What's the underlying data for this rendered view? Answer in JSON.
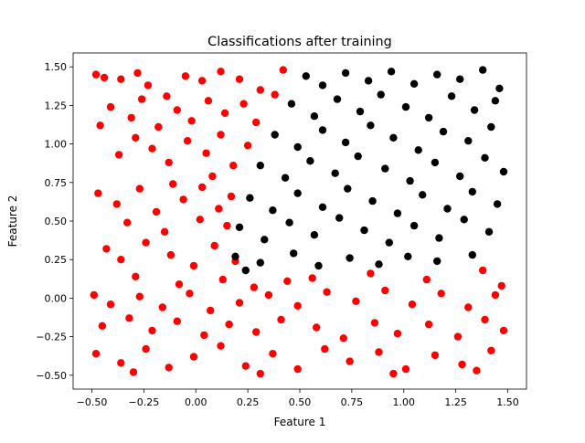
{
  "chart_data": {
    "type": "scatter",
    "title": "Classifications after training",
    "xlabel": "Feature 1",
    "ylabel": "Feature 2",
    "xlim": [
      -0.59,
      1.59
    ],
    "ylim": [
      -0.59,
      1.59
    ],
    "xticks": [
      -0.5,
      -0.25,
      0.0,
      0.25,
      0.5,
      0.75,
      1.0,
      1.25,
      1.5
    ],
    "xtick_labels": [
      "−0.50",
      "−0.25",
      "0.00",
      "0.25",
      "0.50",
      "0.75",
      "1.00",
      "1.25",
      "1.50"
    ],
    "yticks": [
      -0.5,
      -0.25,
      0.0,
      0.25,
      0.5,
      0.75,
      1.0,
      1.25,
      1.5
    ],
    "ytick_labels": [
      "−0.50",
      "−0.25",
      "0.00",
      "0.25",
      "0.50",
      "0.75",
      "1.00",
      "1.25",
      "1.50"
    ],
    "grid": false,
    "legend": "none",
    "series": [
      {
        "color": "#ff0000",
        "points": [
          [
            -0.48,
            1.45
          ],
          [
            -0.44,
            1.43
          ],
          [
            -0.36,
            1.42
          ],
          [
            -0.28,
            1.46
          ],
          [
            -0.23,
            1.38
          ],
          [
            -0.14,
            1.31
          ],
          [
            -0.05,
            1.44
          ],
          [
            0.03,
            1.41
          ],
          [
            0.12,
            1.47
          ],
          [
            0.21,
            1.42
          ],
          [
            0.31,
            1.35
          ],
          [
            0.42,
            1.48
          ],
          [
            -0.46,
            1.12
          ],
          [
            -0.41,
            1.24
          ],
          [
            -0.31,
            1.17
          ],
          [
            -0.26,
            1.29
          ],
          [
            -0.18,
            1.11
          ],
          [
            -0.09,
            1.22
          ],
          [
            -0.02,
            1.15
          ],
          [
            0.06,
            1.28
          ],
          [
            0.14,
            1.2
          ],
          [
            0.23,
            1.26
          ],
          [
            0.29,
            1.14
          ],
          [
            0.38,
            1.32
          ],
          [
            -0.37,
            0.93
          ],
          [
            -0.29,
            1.04
          ],
          [
            -0.21,
            0.97
          ],
          [
            -0.13,
            0.88
          ],
          [
            -0.04,
            1.02
          ],
          [
            0.05,
            0.94
          ],
          [
            0.12,
            1.06
          ],
          [
            0.18,
            0.86
          ],
          [
            0.25,
            0.99
          ],
          [
            0.08,
            0.79
          ],
          [
            -0.11,
            0.74
          ],
          [
            -0.47,
            0.68
          ],
          [
            -0.38,
            0.61
          ],
          [
            -0.27,
            0.71
          ],
          [
            -0.19,
            0.56
          ],
          [
            -0.06,
            0.64
          ],
          [
            0.03,
            0.72
          ],
          [
            0.11,
            0.58
          ],
          [
            0.17,
            0.66
          ],
          [
            -0.33,
            0.49
          ],
          [
            -0.15,
            0.43
          ],
          [
            0.02,
            0.51
          ],
          [
            0.15,
            0.47
          ],
          [
            -0.43,
            0.32
          ],
          [
            -0.36,
            0.25
          ],
          [
            -0.24,
            0.36
          ],
          [
            -0.12,
            0.28
          ],
          [
            -0.01,
            0.21
          ],
          [
            0.09,
            0.34
          ],
          [
            0.19,
            0.24
          ],
          [
            -0.29,
            0.14
          ],
          [
            -0.08,
            0.09
          ],
          [
            0.13,
            0.12
          ],
          [
            0.28,
            0.07
          ],
          [
            0.44,
            0.11
          ],
          [
            -0.49,
            0.02
          ],
          [
            -0.41,
            -0.04
          ],
          [
            -0.27,
            0.01
          ],
          [
            -0.16,
            -0.06
          ],
          [
            -0.03,
            0.03
          ],
          [
            0.07,
            -0.08
          ],
          [
            0.21,
            -0.03
          ],
          [
            0.35,
            0.02
          ],
          [
            0.49,
            -0.05
          ],
          [
            0.63,
            0.04
          ],
          [
            0.77,
            -0.02
          ],
          [
            0.91,
            0.05
          ],
          [
            1.04,
            -0.04
          ],
          [
            1.18,
            0.03
          ],
          [
            1.31,
            -0.06
          ],
          [
            1.44,
            0.02
          ],
          [
            0.56,
            0.13
          ],
          [
            0.84,
            0.16
          ],
          [
            1.11,
            0.12
          ],
          [
            1.38,
            0.18
          ],
          [
            1.47,
            0.08
          ],
          [
            -0.45,
            -0.18
          ],
          [
            -0.32,
            -0.13
          ],
          [
            -0.21,
            -0.21
          ],
          [
            -0.09,
            -0.15
          ],
          [
            0.04,
            -0.24
          ],
          [
            0.16,
            -0.17
          ],
          [
            0.29,
            -0.22
          ],
          [
            0.41,
            -0.14
          ],
          [
            0.58,
            -0.19
          ],
          [
            0.71,
            -0.26
          ],
          [
            0.86,
            -0.16
          ],
          [
            0.97,
            -0.23
          ],
          [
            1.12,
            -0.17
          ],
          [
            1.26,
            -0.25
          ],
          [
            1.39,
            -0.14
          ],
          [
            1.48,
            -0.21
          ],
          [
            -0.48,
            -0.36
          ],
          [
            -0.36,
            -0.42
          ],
          [
            -0.24,
            -0.33
          ],
          [
            -0.13,
            -0.45
          ],
          [
            -0.01,
            -0.38
          ],
          [
            0.12,
            -0.31
          ],
          [
            0.24,
            -0.44
          ],
          [
            0.37,
            -0.36
          ],
          [
            0.49,
            -0.46
          ],
          [
            0.62,
            -0.33
          ],
          [
            0.74,
            -0.41
          ],
          [
            0.88,
            -0.35
          ],
          [
            1.01,
            -0.46
          ],
          [
            1.15,
            -0.37
          ],
          [
            1.28,
            -0.43
          ],
          [
            1.42,
            -0.34
          ],
          [
            -0.3,
            -0.48
          ],
          [
            0.31,
            -0.49
          ],
          [
            0.95,
            -0.49
          ],
          [
            1.35,
            -0.47
          ]
        ]
      },
      {
        "color": "#000000",
        "points": [
          [
            0.53,
            1.44
          ],
          [
            0.61,
            1.38
          ],
          [
            0.72,
            1.46
          ],
          [
            0.83,
            1.41
          ],
          [
            0.94,
            1.47
          ],
          [
            1.05,
            1.39
          ],
          [
            1.16,
            1.45
          ],
          [
            1.27,
            1.42
          ],
          [
            1.38,
            1.48
          ],
          [
            1.46,
            1.36
          ],
          [
            0.46,
            1.26
          ],
          [
            0.57,
            1.18
          ],
          [
            0.68,
            1.29
          ],
          [
            0.79,
            1.21
          ],
          [
            0.89,
            1.32
          ],
          [
            1.01,
            1.24
          ],
          [
            1.12,
            1.17
          ],
          [
            1.23,
            1.31
          ],
          [
            1.34,
            1.22
          ],
          [
            1.44,
            1.28
          ],
          [
            0.38,
            1.06
          ],
          [
            0.49,
            0.98
          ],
          [
            0.61,
            1.09
          ],
          [
            0.72,
            1.01
          ],
          [
            0.84,
            1.12
          ],
          [
            0.95,
            1.04
          ],
          [
            1.07,
            0.96
          ],
          [
            1.19,
            1.08
          ],
          [
            1.31,
            1.02
          ],
          [
            1.42,
            1.11
          ],
          [
            0.31,
            0.86
          ],
          [
            0.43,
            0.78
          ],
          [
            0.55,
            0.89
          ],
          [
            0.67,
            0.81
          ],
          [
            0.78,
            0.92
          ],
          [
            0.91,
            0.84
          ],
          [
            1.03,
            0.76
          ],
          [
            1.15,
            0.88
          ],
          [
            1.27,
            0.79
          ],
          [
            1.39,
            0.91
          ],
          [
            1.48,
            0.82
          ],
          [
            0.26,
            0.65
          ],
          [
            0.37,
            0.57
          ],
          [
            0.49,
            0.68
          ],
          [
            0.61,
            0.59
          ],
          [
            0.73,
            0.71
          ],
          [
            0.85,
            0.63
          ],
          [
            0.97,
            0.55
          ],
          [
            1.09,
            0.67
          ],
          [
            1.21,
            0.58
          ],
          [
            1.33,
            0.69
          ],
          [
            1.45,
            0.61
          ],
          [
            0.21,
            0.46
          ],
          [
            0.33,
            0.38
          ],
          [
            0.45,
            0.49
          ],
          [
            0.57,
            0.41
          ],
          [
            0.69,
            0.52
          ],
          [
            0.81,
            0.44
          ],
          [
            0.93,
            0.36
          ],
          [
            1.05,
            0.47
          ],
          [
            1.17,
            0.39
          ],
          [
            1.29,
            0.51
          ],
          [
            1.41,
            0.43
          ],
          [
            0.19,
            0.27
          ],
          [
            0.31,
            0.23
          ],
          [
            0.47,
            0.29
          ],
          [
            0.59,
            0.21
          ],
          [
            0.74,
            0.26
          ],
          [
            0.88,
            0.22
          ],
          [
            1.02,
            0.27
          ],
          [
            1.16,
            0.24
          ],
          [
            1.33,
            0.28
          ],
          [
            0.24,
            0.18
          ]
        ]
      }
    ]
  }
}
